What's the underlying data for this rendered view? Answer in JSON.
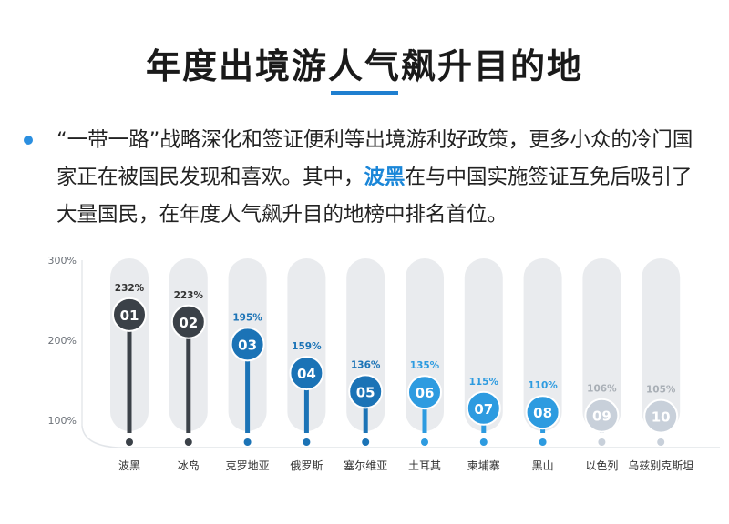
{
  "header": {
    "title": "年度出境游人气飙升目的地"
  },
  "intro": {
    "part1": "“一带一路”战略深化和签证便利等出境游利好政策，更多小众的冷门国家正在被国民发现和喜欢。其中，",
    "highlight": "波黑",
    "part2": "在与中国实施签证互免后吸引了大量国民，在年度人气飙升目的地榜中排名首位。"
  },
  "colors": {
    "accent": "#1f7fd0",
    "highlight": "#1a86d8",
    "rank_dark": "#3b4148",
    "rank_blue_dark": "#1b73b6",
    "rank_blue": "#2d9be0",
    "rank_light": "#c8d0da",
    "column_bg": "#e9ebee"
  },
  "chart_data": {
    "type": "bar",
    "ylim": [
      100,
      300
    ],
    "yticks": [
      "100%",
      "200%",
      "300%"
    ],
    "ytick_values": [
      100,
      200,
      300
    ],
    "categories": [
      "波黑",
      "冰岛",
      "克罗地亚",
      "俄罗斯",
      "塞尔维亚",
      "土耳其",
      "柬埔寨",
      "黑山",
      "以色列",
      "乌兹别克斯坦"
    ],
    "values": [
      232,
      223,
      195,
      159,
      136,
      135,
      115,
      110,
      106,
      105
    ],
    "value_labels": [
      "232%",
      "223%",
      "195%",
      "159%",
      "136%",
      "135%",
      "115%",
      "110%",
      "106%",
      "105%"
    ],
    "ranks": [
      "01",
      "02",
      "03",
      "04",
      "05",
      "06",
      "07",
      "08",
      "09",
      "10"
    ],
    "rank_colors": [
      "#3b4148",
      "#3b4148",
      "#1b73b6",
      "#1b73b6",
      "#1b73b6",
      "#2d9be0",
      "#2d9be0",
      "#2d9be0",
      "#c8d0da",
      "#c8d0da"
    ],
    "label_colors": [
      "#333333",
      "#333333",
      "#1b73b6",
      "#1b73b6",
      "#1b73b6",
      "#2d9be0",
      "#2d9be0",
      "#2d9be0",
      "#a9afb6",
      "#a9afb6"
    ]
  }
}
